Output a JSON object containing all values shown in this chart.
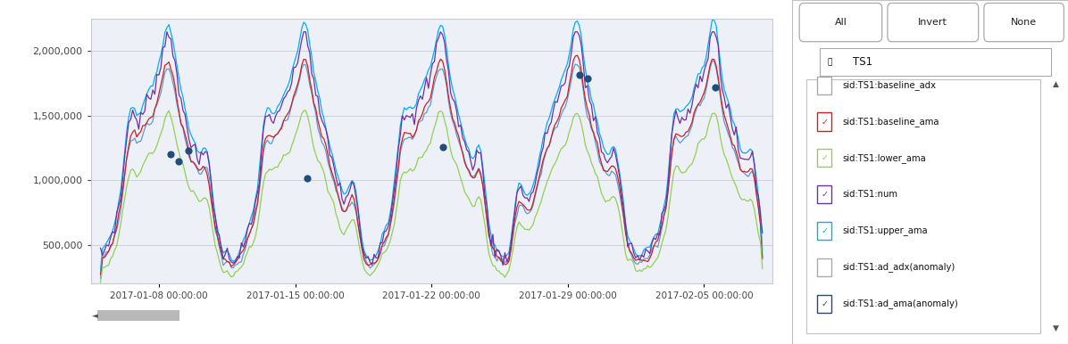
{
  "fig_width": 11.96,
  "fig_height": 3.86,
  "dpi": 100,
  "fig_bg_color": "#ffffff",
  "plot_bg_color": "#eef0f8",
  "outer_bg_color": "#f2f2f5",
  "ylim": [
    200000,
    2250000
  ],
  "yticks": [
    500000,
    1000000,
    1500000,
    2000000
  ],
  "ytick_labels": [
    "500,000",
    "1,000,000",
    "1,500,000",
    "2,000,000"
  ],
  "xtick_labels": [
    "2017-01-08 00:00:00",
    "2017-01-15 00:00:00",
    "2017-01-22 00:00:00",
    "2017-01-29 00:00:00",
    "2017-02-05 00:00:00"
  ],
  "xtick_days": [
    3,
    10,
    17,
    24,
    31
  ],
  "xlim": [
    -0.5,
    34.5
  ],
  "series_colors": {
    "baseline_adx": "#5b9bd5",
    "baseline_ama": "#cc2222",
    "lower_ama": "#92d050",
    "num": "#7030a0",
    "upper_ama": "#00b0f0",
    "ad_ama_anomaly": "#1f4e79"
  },
  "legend_items": [
    {
      "label": "sid:TS1:baseline_adx",
      "color": "#5b9bd5",
      "checked": false
    },
    {
      "label": "sid:TS1:baseline_ama",
      "color": "#cc2222",
      "checked": true
    },
    {
      "label": "sid:TS1:lower_ama",
      "color": "#92d050",
      "checked": true
    },
    {
      "label": "sid:TS1:num",
      "color": "#7030a0",
      "checked": true
    },
    {
      "label": "sid:TS1:upper_ama",
      "color": "#00b0f0",
      "checked": true
    },
    {
      "label": "sid:TS1:ad_adx(anomaly)",
      "color": "#ed7d31",
      "checked": false
    },
    {
      "label": "sid:TS1:ad_ama(anomaly)",
      "color": "#1f4e79",
      "checked": true
    }
  ],
  "panel_title": "TS1",
  "buttons": [
    "All",
    "Invert",
    "None"
  ],
  "right_panel_bg": "#f0f0f0",
  "right_list_bg": "#ffffff",
  "scrollbar_bg": "#d0d0d0",
  "scrollbar_thumb": "#b8b8b8"
}
